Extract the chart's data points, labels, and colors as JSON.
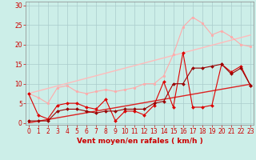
{
  "x": [
    0,
    1,
    2,
    3,
    4,
    5,
    6,
    7,
    8,
    9,
    10,
    11,
    12,
    13,
    14,
    15,
    16,
    17,
    18,
    19,
    20,
    21,
    22,
    23
  ],
  "line_bright_red": [
    7.5,
    2,
    1,
    4.5,
    5,
    5,
    4,
    3.5,
    6,
    0.5,
    3,
    3,
    2,
    4.5,
    10.5,
    4,
    18,
    4,
    4,
    4.5,
    15,
    13,
    14.5,
    9.5
  ],
  "line_dark_red": [
    0.5,
    0.5,
    0.5,
    3,
    3.5,
    3.5,
    3,
    2.5,
    3,
    3,
    3.5,
    3.5,
    3.5,
    5,
    5.5,
    10,
    10,
    14,
    14,
    14.5,
    15,
    12.5,
    14,
    9.5
  ],
  "line_trend_low": [
    0.0,
    0.43,
    0.86,
    1.29,
    1.72,
    2.15,
    2.58,
    3.01,
    3.44,
    3.87,
    4.3,
    4.73,
    5.16,
    5.59,
    6.02,
    6.45,
    6.88,
    7.31,
    7.74,
    8.17,
    8.6,
    9.03,
    9.46,
    9.89
  ],
  "line_pink_dots": [
    7.5,
    6.5,
    5,
    9,
    9.5,
    8,
    7.5,
    8,
    8.5,
    8,
    8.5,
    9,
    10,
    10,
    12,
    17.5,
    24.5,
    27,
    25.5,
    22.5,
    23.5,
    22,
    20,
    19.5
  ],
  "line_trend_high": [
    7.5,
    8.15,
    8.8,
    9.45,
    10.1,
    10.75,
    11.4,
    12.05,
    12.7,
    13.35,
    14.0,
    14.65,
    15.3,
    15.95,
    16.6,
    17.25,
    17.9,
    18.55,
    19.2,
    19.85,
    20.5,
    21.15,
    21.8,
    22.45
  ],
  "background_color": "#cceee8",
  "grid_color": "#aacccc",
  "color_bright_red": "#dd0000",
  "color_dark_red": "#990000",
  "color_trend_low": "#dd2222",
  "color_pink_dots": "#ffaaaa",
  "color_trend_high": "#ffbbbb",
  "xlabel": "Vent moyen/en rafales ( km/h )",
  "ylabel_ticks": [
    0,
    5,
    10,
    15,
    20,
    25,
    30
  ],
  "xticks": [
    0,
    1,
    2,
    3,
    4,
    5,
    6,
    7,
    8,
    9,
    10,
    11,
    12,
    13,
    14,
    15,
    16,
    17,
    18,
    19,
    20,
    21,
    22,
    23
  ],
  "xlim": [
    -0.3,
    23.3
  ],
  "ylim": [
    -0.5,
    31
  ],
  "xlabel_fontsize": 6.5,
  "tick_fontsize": 5.5
}
